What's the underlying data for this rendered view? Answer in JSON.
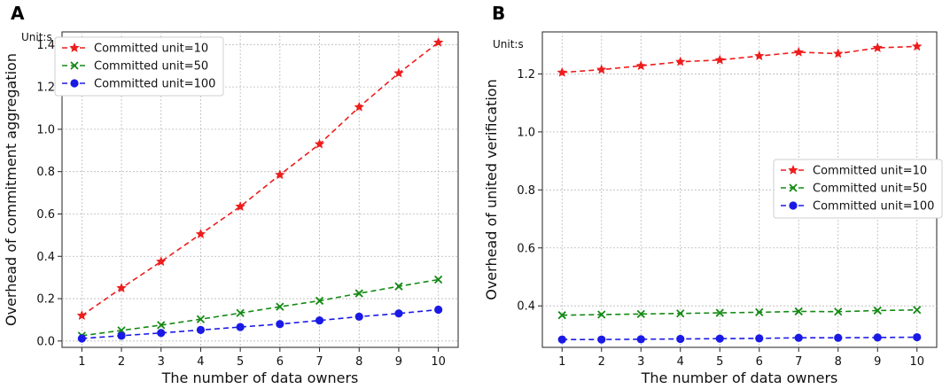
{
  "chart_data": [
    {
      "type": "line",
      "panel_label": "A",
      "unit_label": "Unit:s",
      "title": "",
      "xlabel": "The number of data owners",
      "ylabel": "Overhead of commitment aggregation",
      "x": [
        1,
        2,
        3,
        4,
        5,
        6,
        7,
        8,
        9,
        10
      ],
      "xlim": [
        0.5,
        10.5
      ],
      "ylim": [
        -0.03,
        1.46
      ],
      "yticks": [
        0.0,
        0.2,
        0.4,
        0.6,
        0.8,
        1.0,
        1.2,
        1.4
      ],
      "ytick_labels": [
        "0.0",
        "0.2",
        "0.4",
        "0.6",
        "0.8",
        "1.0",
        "1.2",
        "1.4"
      ],
      "xtick_labels": [
        "1",
        "2",
        "3",
        "4",
        "5",
        "6",
        "7",
        "8",
        "9",
        "10"
      ],
      "grid": true,
      "legend_position": "top-left",
      "series": [
        {
          "name": "Committed unit=10",
          "color": "#ee1c1c",
          "marker": "star",
          "values": [
            0.12,
            0.25,
            0.375,
            0.505,
            0.635,
            0.785,
            0.93,
            1.105,
            1.265,
            1.41
          ]
        },
        {
          "name": "Committed unit=50",
          "color": "#138a13",
          "marker": "x",
          "values": [
            0.025,
            0.05,
            0.075,
            0.103,
            0.132,
            0.162,
            0.19,
            0.225,
            0.258,
            0.29
          ]
        },
        {
          "name": "Committed unit=100",
          "color": "#1a1ae6",
          "marker": "circle",
          "values": [
            0.012,
            0.025,
            0.038,
            0.052,
            0.066,
            0.08,
            0.097,
            0.115,
            0.13,
            0.148
          ]
        }
      ]
    },
    {
      "type": "line",
      "panel_label": "B",
      "unit_label": "Unit:s",
      "title": "",
      "xlabel": "The number of data owners",
      "ylabel": "Overhead of united verification",
      "x": [
        1,
        2,
        3,
        4,
        5,
        6,
        7,
        8,
        9,
        10
      ],
      "xlim": [
        0.5,
        10.5
      ],
      "ylim": [
        0.257,
        1.345
      ],
      "yticks": [
        0.4,
        0.6,
        0.8,
        1.0,
        1.2
      ],
      "ytick_labels": [
        "0.4",
        "0.6",
        "0.8",
        "1.0",
        "1.2"
      ],
      "xtick_labels": [
        "1",
        "2",
        "3",
        "4",
        "5",
        "6",
        "7",
        "8",
        "9",
        "10"
      ],
      "grid": true,
      "legend_position": "center-right",
      "series": [
        {
          "name": "Committed unit=10",
          "color": "#ee1c1c",
          "marker": "star",
          "values": [
            1.205,
            1.215,
            1.228,
            1.242,
            1.248,
            1.262,
            1.275,
            1.27,
            1.29,
            1.295
          ]
        },
        {
          "name": "Committed unit=50",
          "color": "#138a13",
          "marker": "x",
          "values": [
            0.368,
            0.37,
            0.372,
            0.374,
            0.376,
            0.378,
            0.381,
            0.38,
            0.384,
            0.386
          ]
        },
        {
          "name": "Committed unit=100",
          "color": "#1a1ae6",
          "marker": "circle",
          "values": [
            0.284,
            0.284,
            0.285,
            0.286,
            0.287,
            0.288,
            0.29,
            0.29,
            0.291,
            0.292
          ]
        }
      ]
    }
  ]
}
